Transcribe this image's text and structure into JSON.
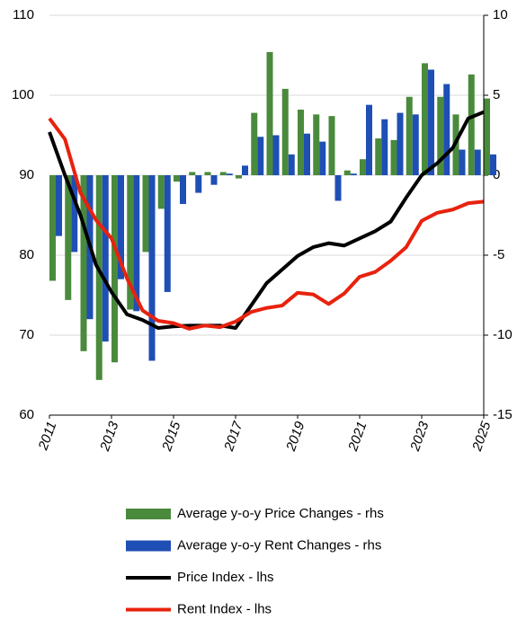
{
  "chart_data": {
    "type": "bar",
    "x": [
      2011,
      2011.5,
      2012,
      2012.5,
      2013,
      2013.5,
      2014,
      2014.5,
      2015,
      2015.5,
      2016,
      2016.5,
      2017,
      2017.5,
      2018,
      2018.5,
      2019,
      2019.5,
      2020,
      2020.5,
      2021,
      2021.5,
      2022,
      2022.5,
      2023,
      2023.5,
      2024,
      2024.5,
      2025
    ],
    "xlim": [
      2011,
      2025
    ],
    "xticks": [
      2011,
      2013,
      2015,
      2017,
      2019,
      2021,
      2023,
      2025
    ],
    "ylim": [
      60,
      110
    ],
    "yticks": [
      60,
      70,
      80,
      90,
      100,
      110
    ],
    "y2lim": [
      -15,
      10
    ],
    "y2ticks": [
      -15,
      -10,
      -5,
      0,
      5,
      10
    ],
    "grid": true,
    "series": [
      {
        "name": "Average y-o-y Price Changes - rhs",
        "type": "bar",
        "axis": "y2",
        "color": "#4a8a3c",
        "values": [
          -6.6,
          -7.8,
          -11.0,
          -12.8,
          -11.7,
          -8.4,
          -4.8,
          -2.1,
          -0.4,
          0.2,
          0.2,
          0.2,
          -0.2,
          3.9,
          7.7,
          5.4,
          4.1,
          3.8,
          3.7,
          0.3,
          1.0,
          2.3,
          2.2,
          4.9,
          7.0,
          4.9,
          3.8,
          6.3,
          4.8
        ]
      },
      {
        "name": "Average y-o-y Rent Changes - rhs",
        "type": "bar",
        "axis": "y2",
        "color": "#1f4fb4",
        "values": [
          -3.8,
          -4.8,
          -9.0,
          -10.4,
          -6.5,
          -8.5,
          -11.6,
          -7.3,
          -1.8,
          -1.1,
          -0.6,
          0.1,
          0.6,
          2.4,
          2.5,
          1.3,
          2.6,
          2.1,
          -1.6,
          0.1,
          4.4,
          3.5,
          3.9,
          3.8,
          6.6,
          5.7,
          1.6,
          1.6,
          1.3
        ]
      },
      {
        "name": "Price Index - lhs",
        "type": "line",
        "color": "#000000",
        "values": [
          95.4,
          90.0,
          85.0,
          78.8,
          75.4,
          72.6,
          71.9,
          70.9,
          71.1,
          71.2,
          71.2,
          71.2,
          70.9,
          73.7,
          76.5,
          78.2,
          79.9,
          81.0,
          81.5,
          81.2,
          82.1,
          83.0,
          84.2,
          87.2,
          90.0,
          91.5,
          93.4,
          97.1,
          97.9
        ]
      },
      {
        "name": "Rent Index - lhs",
        "type": "line",
        "color": "#e8220e",
        "values": [
          97.1,
          94.5,
          87.8,
          84.4,
          82.1,
          77.1,
          73.1,
          71.8,
          71.5,
          70.8,
          71.2,
          71.0,
          71.7,
          72.9,
          73.4,
          73.7,
          75.3,
          75.1,
          73.9,
          75.2,
          77.3,
          77.9,
          79.3,
          81.0,
          84.3,
          85.3,
          85.7,
          86.5,
          86.7
        ]
      }
    ]
  }
}
